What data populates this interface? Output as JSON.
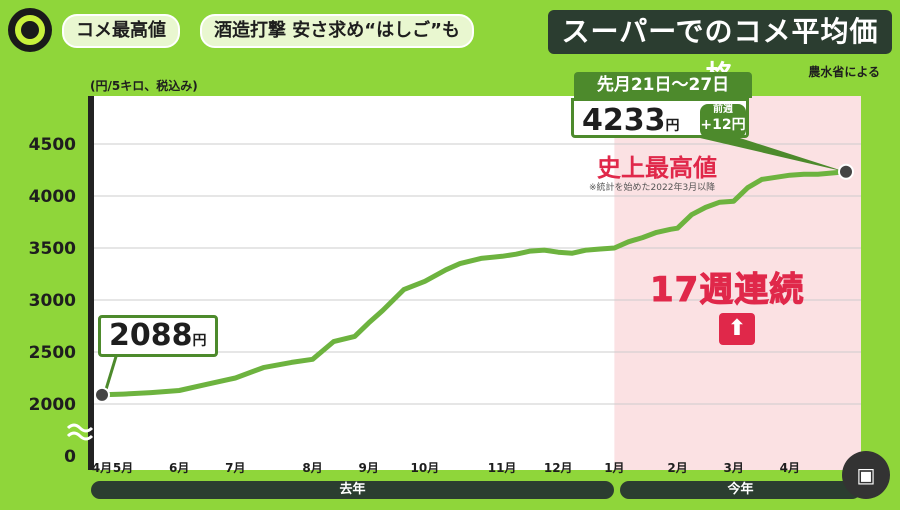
{
  "header": {
    "tag1": "コメ最高値",
    "tag2": "酒造打撃 安さ求め“はしご”も",
    "banner": "スーパーでのコメ平均価格",
    "source": "農水省による"
  },
  "unit_label": "(円/5キロ、税込み)",
  "annotations": {
    "start_value": "2088",
    "yen": "円",
    "end_period": "先月21日～27日",
    "end_value": "4233",
    "delta_label": "前週",
    "delta_value": "+12円",
    "record_label": "史上最高値",
    "record_note": "※統計を始めた2022年3月以降",
    "streak_label": "17週連続",
    "arrow_icon": "⬆"
  },
  "years": [
    "去年",
    "今年"
  ],
  "colors": {
    "background": "#8fd63a",
    "line": "#6db33f",
    "highlight": "#fbe1e3",
    "accent_red": "#e0284a",
    "dark": "#2b3d30"
  },
  "chart_data": {
    "type": "line",
    "title": "スーパーでのコメ平均価格",
    "ylabel": "(円/5キロ、税込み)",
    "ylim": [
      0,
      4700
    ],
    "y_ticks": [
      0,
      2000,
      2500,
      3000,
      3500,
      4000,
      4500
    ],
    "y_axis_break": true,
    "x_ticks": [
      "4月",
      "5月",
      "6月",
      "7月",
      "8月",
      "9月",
      "10月",
      "11月",
      "12月",
      "1月",
      "2月",
      "3月",
      "4月"
    ],
    "x_tick_weeks": [
      0,
      3,
      11,
      19,
      30,
      38,
      46,
      57,
      65,
      73,
      82,
      90,
      98
    ],
    "highlight_from_week": 73,
    "series": [
      {
        "weeks": [
          0,
          3,
          7,
          11,
          15,
          19,
          23,
          27,
          30,
          33,
          36,
          38,
          40,
          43,
          46,
          49,
          51,
          54,
          57,
          59,
          61,
          63,
          65,
          67,
          69,
          71,
          73,
          75,
          77,
          79,
          81,
          82,
          84,
          86,
          88,
          90,
          92,
          94,
          96,
          98,
          100,
          102,
          104,
          106
        ],
        "values": [
          2088,
          2095,
          2110,
          2130,
          2190,
          2250,
          2350,
          2400,
          2430,
          2600,
          2650,
          2780,
          2900,
          3100,
          3180,
          3290,
          3350,
          3400,
          3420,
          3440,
          3470,
          3480,
          3460,
          3450,
          3480,
          3490,
          3500,
          3560,
          3600,
          3650,
          3680,
          3690,
          3820,
          3890,
          3940,
          3950,
          4080,
          4160,
          4180,
          4200,
          4210,
          4210,
          4221,
          4233
        ]
      }
    ]
  }
}
